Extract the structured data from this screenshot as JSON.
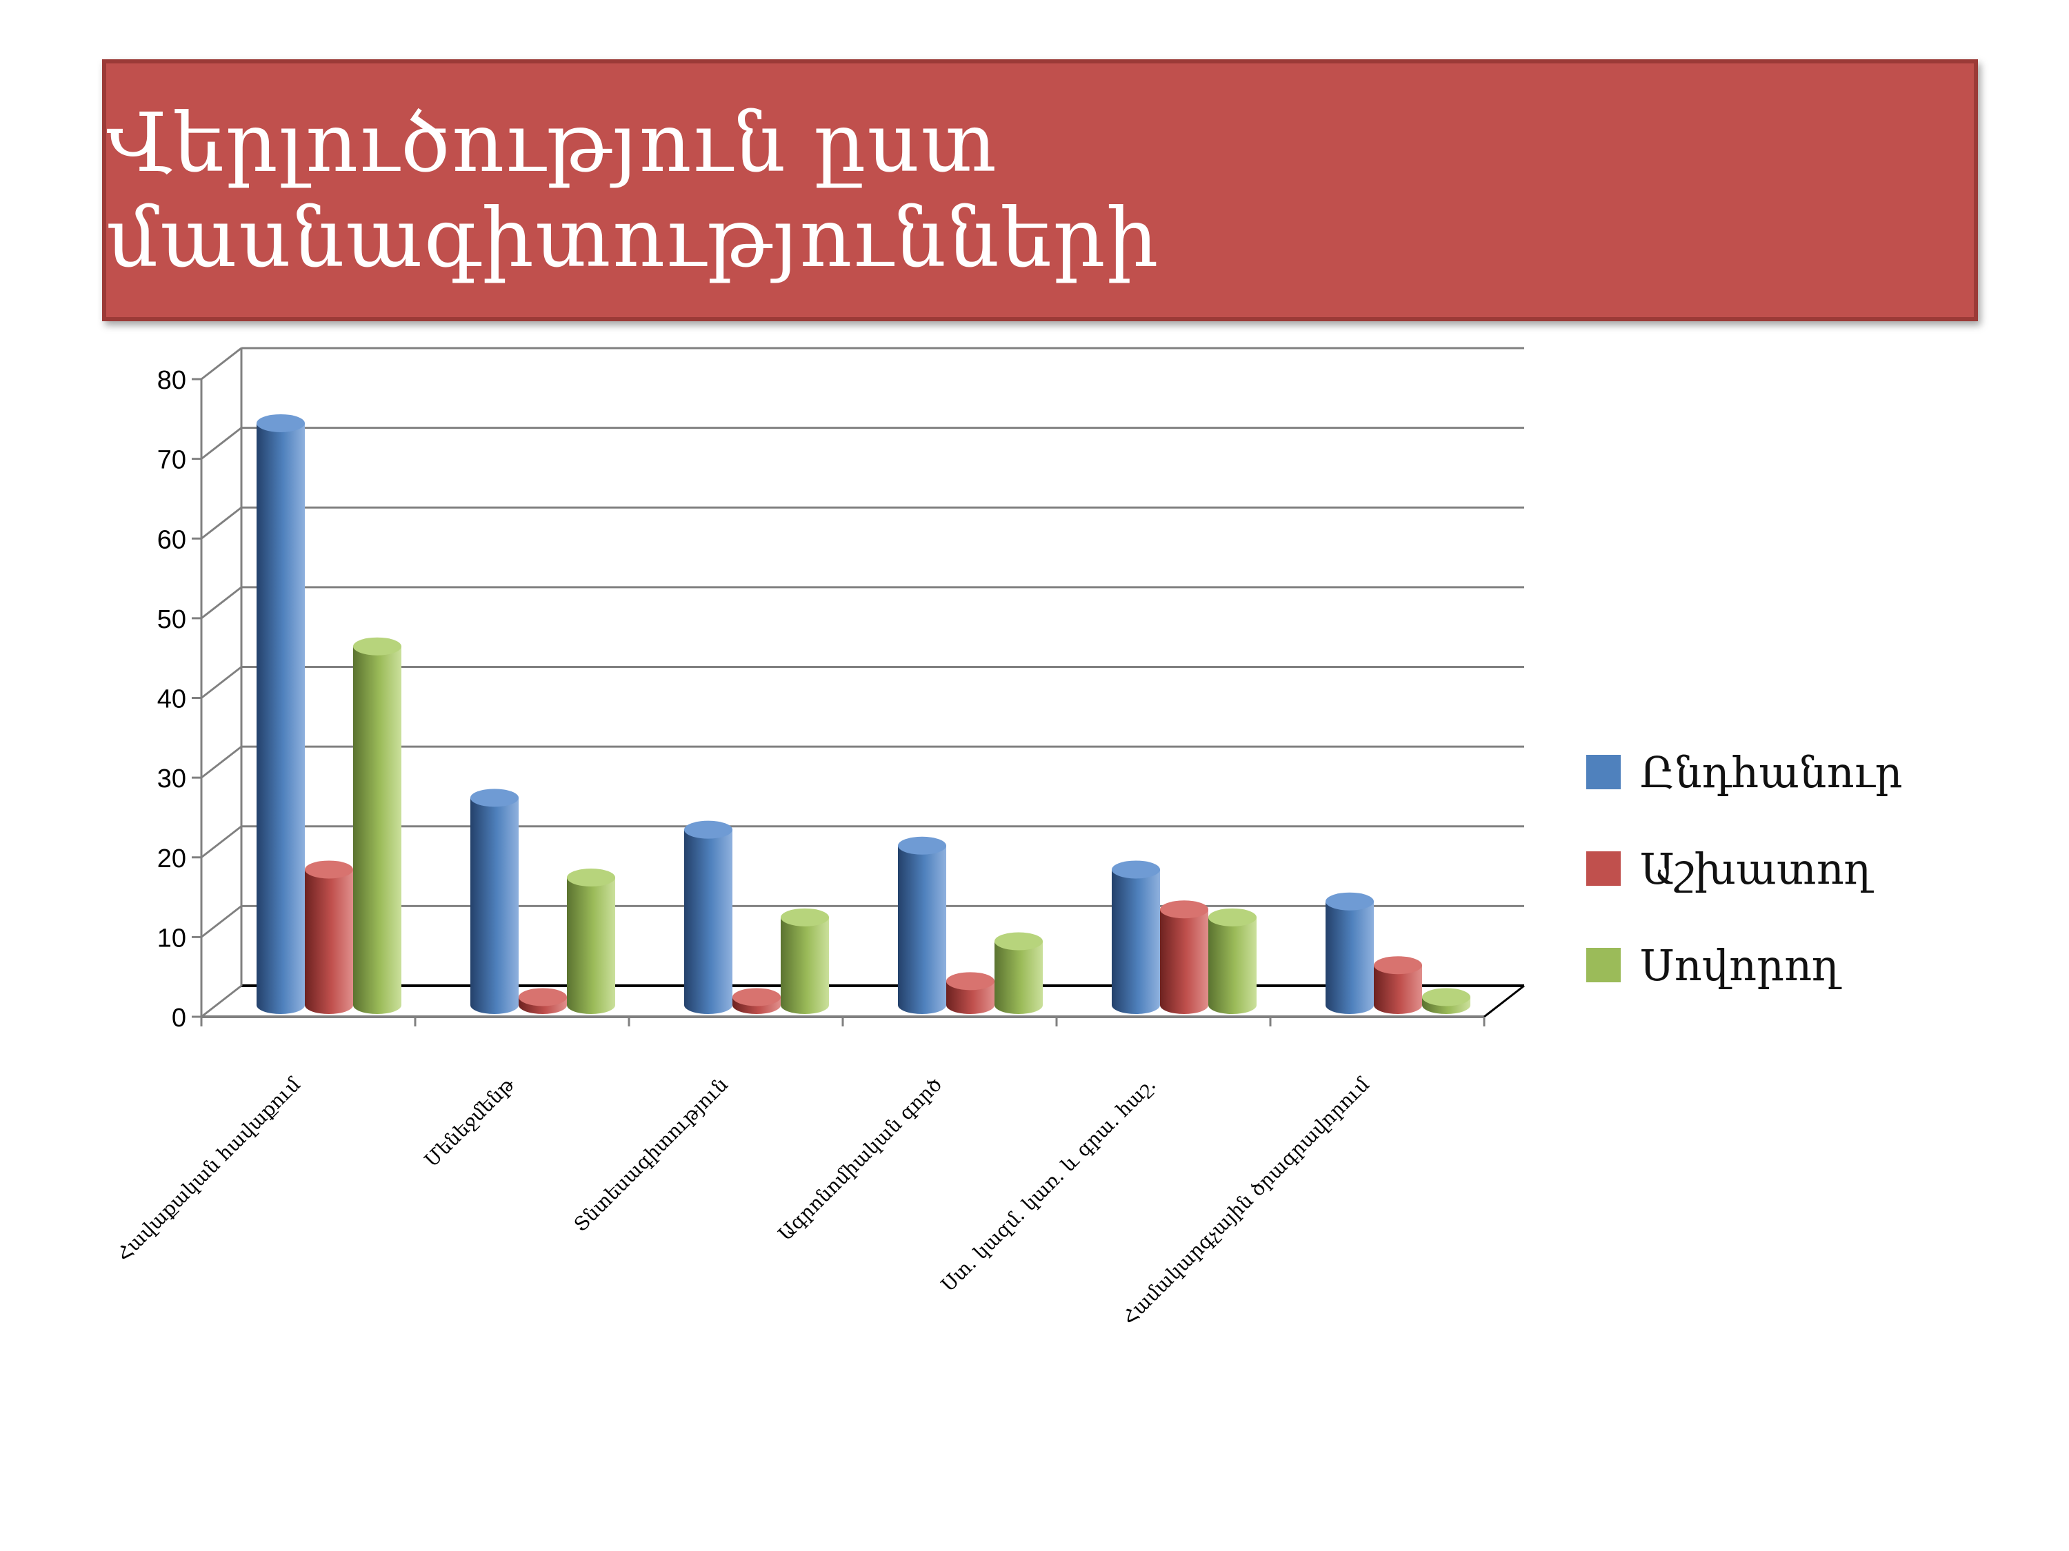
{
  "title": "Վերլուծություն ըստ մասնագիտությունների",
  "chart_data": {
    "type": "bar",
    "categories": [
      "Հավաքական հավաքում",
      "Մենեջմենթ",
      "Տնտեսագիտություն",
      "Ագրոնոմիական գործ",
      "Ստ. կազմ. կառ. և գրա. հաշ.",
      "Համակարգչային ծրագրավորում"
    ],
    "series": [
      {
        "name": "Ընդհանուր",
        "color": "#4f81bd",
        "values": [
          73,
          26,
          22,
          20,
          17,
          13
        ]
      },
      {
        "name": "Աշխատող",
        "color": "#c0504d",
        "values": [
          17,
          1,
          1,
          3,
          12,
          5
        ]
      },
      {
        "name": "Սովորող",
        "color": "#9bbb59",
        "values": [
          45,
          16,
          11,
          8,
          11,
          1
        ]
      }
    ],
    "yticks": [
      "0",
      "10",
      "20",
      "30",
      "40",
      "50",
      "60",
      "70",
      "80"
    ],
    "ylim": [
      0,
      80
    ],
    "grid": true,
    "legend": "right",
    "style": "3d-cylinder"
  }
}
